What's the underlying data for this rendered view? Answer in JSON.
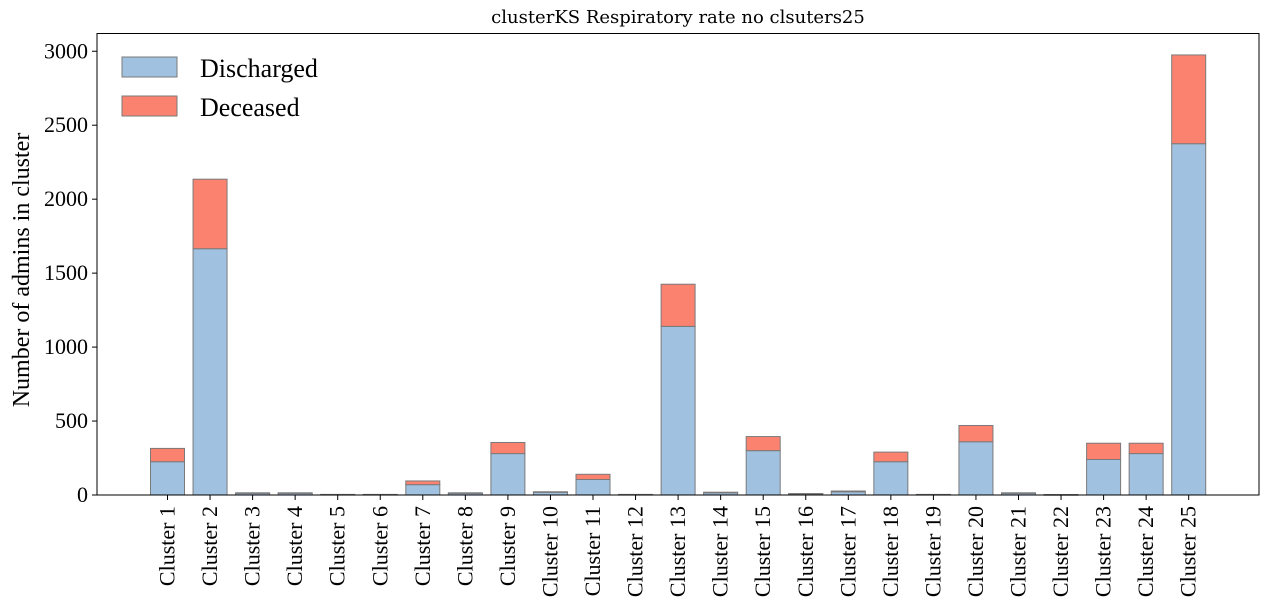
{
  "chart_data": {
    "type": "bar",
    "stacked": true,
    "title": "clusterKS Respiratory rate no clsuters25",
    "xlabel": "",
    "ylabel": "Number of admins in cluster",
    "ylim": [
      0,
      3120
    ],
    "yticks": [
      0,
      500,
      1000,
      1500,
      2000,
      2500,
      3000
    ],
    "legend_position": "top-left",
    "grid": false,
    "categories": [
      "Cluster 1",
      "Cluster 2",
      "Cluster 3",
      "Cluster 4",
      "Cluster 5",
      "Cluster 6",
      "Cluster 7",
      "Cluster 8",
      "Cluster 9",
      "Cluster 10",
      "Cluster 11",
      "Cluster 12",
      "Cluster 13",
      "Cluster 14",
      "Cluster 15",
      "Cluster 16",
      "Cluster 17",
      "Cluster 18",
      "Cluster 19",
      "Cluster 20",
      "Cluster 21",
      "Cluster 22",
      "Cluster 23",
      "Cluster 24",
      "Cluster 25"
    ],
    "series": [
      {
        "name": "Discharged",
        "color": "#a0c1e0",
        "values": [
          225,
          1665,
          12,
          12,
          3,
          3,
          70,
          12,
          280,
          18,
          105,
          3,
          1140,
          15,
          300,
          8,
          22,
          225,
          3,
          360,
          12,
          2,
          240,
          280,
          2375
        ]
      },
      {
        "name": "Deceased",
        "color": "#fc8270",
        "values": [
          90,
          470,
          3,
          3,
          1,
          1,
          25,
          3,
          75,
          4,
          35,
          1,
          285,
          4,
          95,
          2,
          5,
          65,
          1,
          110,
          3,
          1,
          110,
          70,
          600
        ]
      }
    ],
    "edge_color": "#7a7a7a"
  }
}
